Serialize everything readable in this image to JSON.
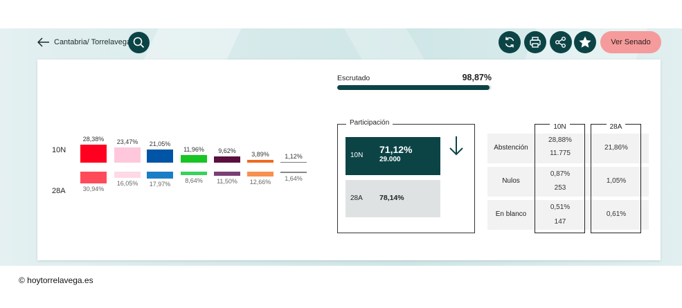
{
  "nav": {
    "breadcrumb": "Cantabria/ Torrelavega",
    "senado_label": "Ver Senado"
  },
  "icons": [
    "arrow-left-icon",
    "search-icon",
    "refresh-icon",
    "print-icon",
    "share-icon",
    "star-icon"
  ],
  "colors": {
    "accent": "#0c4446",
    "senado": "#f59b9b"
  },
  "chart_data": {
    "type": "bar",
    "rows": [
      "10N",
      "28A"
    ],
    "series": [
      {
        "row": "10N",
        "values": [
          28.38,
          23.47,
          21.05,
          11.96,
          9.62,
          3.89,
          1.12
        ],
        "labels": [
          "28,38%",
          "23,47%",
          "21,05%",
          "11,96%",
          "9,62%",
          "3,89%",
          "1,12%"
        ],
        "colors": [
          "#ff0020",
          "#ffc7dc",
          "#0055a7",
          "#18c524",
          "#5a0f3e",
          "#f06a1e",
          "#777777"
        ]
      },
      {
        "row": "28A",
        "values": [
          30.94,
          16.05,
          17.97,
          8.64,
          11.5,
          12.66,
          1.64
        ],
        "labels": [
          "30,94%",
          "16,05%",
          "17,97%",
          "8,64%",
          "11,50%",
          "12,66%",
          "1,64%"
        ],
        "colors": [
          "#ff4a5a",
          "#ffd9e5",
          "#1a7ec7",
          "#36d25a",
          "#7a3f75",
          "#f7914f",
          "#888888"
        ]
      }
    ]
  },
  "escrutado": {
    "label": "Escrutado",
    "value_text": "98,87%",
    "value": 98.87
  },
  "participacion": {
    "title": "Participación",
    "n10": {
      "tag": "10N",
      "percent": "71,12%",
      "votes": "29.000"
    },
    "a28": {
      "tag": "28A",
      "percent": "78,14%"
    }
  },
  "stats": {
    "col_10n": "10N",
    "col_28a": "28A",
    "rows": [
      {
        "label": "Abstención",
        "n10_pct": "28,88%",
        "n10_num": "11.775",
        "a28_pct": "21,86%"
      },
      {
        "label": "Nulos",
        "n10_pct": "0,87%",
        "n10_num": "253",
        "a28_pct": "1,05%"
      },
      {
        "label": "En blanco",
        "n10_pct": "0,51%",
        "n10_num": "147",
        "a28_pct": "0,61%"
      }
    ]
  },
  "footer": {
    "copyright": "© hoytorrelavega.es"
  }
}
